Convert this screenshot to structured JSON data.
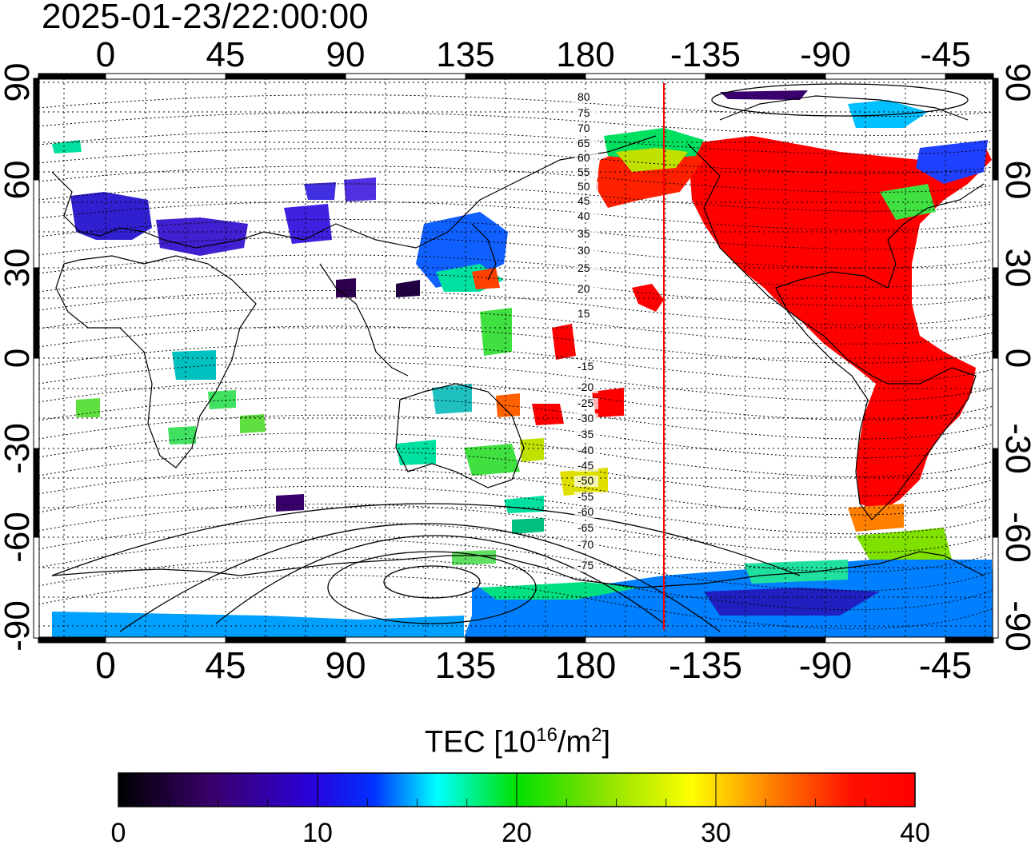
{
  "header": {
    "timestamp": "2025-01-23/22:00:00"
  },
  "map": {
    "top_lon_labels": [
      "0",
      "45",
      "90",
      "135",
      "180",
      "-135",
      "-90",
      "-45"
    ],
    "bottom_lon_labels": [
      "0",
      "45",
      "90",
      "135",
      "180",
      "-135",
      "-90",
      "-45"
    ],
    "left_lat_labels": [
      "90",
      "60",
      "30",
      "0",
      "-30",
      "-60",
      "-90"
    ],
    "right_lat_labels": [
      "90",
      "60",
      "30",
      "0",
      "-30",
      "-60",
      "-90"
    ],
    "magnetic_lat_labels": [
      "80",
      "75",
      "70",
      "65",
      "60",
      "55",
      "50",
      "45",
      "40",
      "35",
      "30",
      "25",
      "20",
      "15",
      "-15",
      "-20",
      "-25",
      "-30",
      "-35",
      "-40",
      "-45",
      "-50",
      "-55",
      "-60",
      "-65",
      "-70",
      "-75"
    ],
    "terminator_color": "#ff0000"
  },
  "colorbar": {
    "title_text": "TEC  [10",
    "title_exp": "16",
    "title_mid": "/m",
    "title_exp2": "2",
    "title_end": "]",
    "tick_labels": [
      "0",
      "10",
      "20",
      "30",
      "40"
    ],
    "range": [
      0,
      40
    ]
  }
}
